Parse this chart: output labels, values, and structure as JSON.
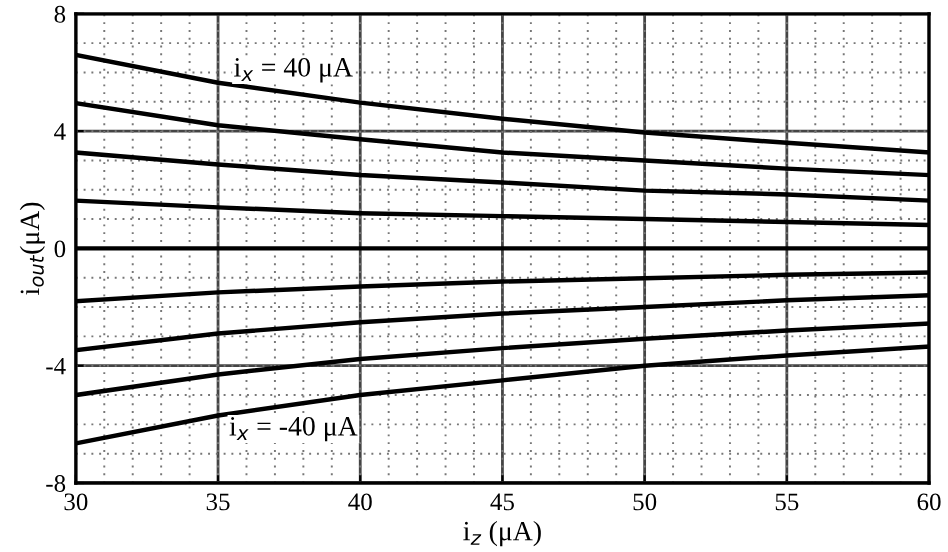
{
  "chart_data": {
    "type": "line",
    "x": [
      30,
      35,
      40,
      45,
      50,
      55,
      60
    ],
    "series": [
      {
        "color": "#000000",
        "values": [
          6.6,
          5.65,
          4.97,
          4.42,
          3.95,
          3.6,
          3.27
        ]
      },
      {
        "color": "#000000",
        "values": [
          4.95,
          4.2,
          3.72,
          3.27,
          3.0,
          2.72,
          2.5
        ]
      },
      {
        "color": "#000000",
        "values": [
          3.27,
          2.86,
          2.5,
          2.25,
          1.97,
          1.84,
          1.63
        ]
      },
      {
        "color": "#000000",
        "values": [
          1.63,
          1.4,
          1.2,
          1.1,
          1.0,
          0.9,
          0.8
        ]
      },
      {
        "color": "#000000",
        "values": [
          0,
          0,
          0,
          0,
          0,
          0,
          0
        ]
      },
      {
        "color": "#000000",
        "values": [
          -1.8,
          -1.5,
          -1.3,
          -1.13,
          -1.02,
          -0.9,
          -0.82
        ]
      },
      {
        "color": "#000000",
        "values": [
          -3.47,
          -2.9,
          -2.52,
          -2.22,
          -2.0,
          -1.77,
          -1.6
        ]
      },
      {
        "color": "#000000",
        "values": [
          -5.0,
          -4.3,
          -3.77,
          -3.4,
          -3.08,
          -2.8,
          -2.56
        ]
      },
      {
        "color": "#000000",
        "values": [
          -6.65,
          -5.7,
          -5.0,
          -4.5,
          -4.0,
          -3.65,
          -3.35
        ]
      }
    ],
    "xlim": [
      30,
      60
    ],
    "ylim": [
      -8,
      8
    ],
    "xticks": [
      30,
      35,
      40,
      45,
      50,
      55,
      60
    ],
    "yticks": [
      -8,
      -4,
      0,
      4,
      8
    ],
    "xlabel": "i$_{z}$ (μA)",
    "ylabel": "i$_{out}$(μA)",
    "annotations": [
      "i$_{x}$ = 40 μA",
      "i$_{x}$ = -40 μA"
    ],
    "grid": true,
    "marker": "none",
    "line_style": "solid"
  }
}
